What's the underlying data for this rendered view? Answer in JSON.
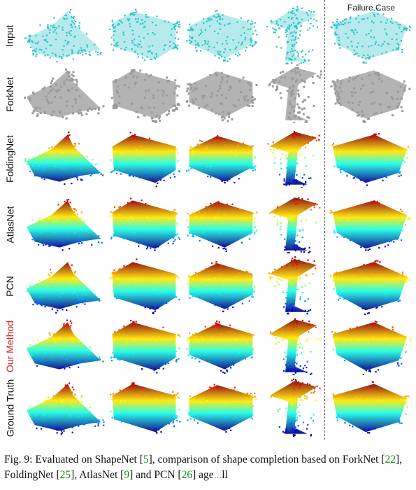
{
  "figure": {
    "column_header_failure": "Failure Case",
    "rows": [
      {
        "key": "input",
        "label": "Input",
        "style": "cyan"
      },
      {
        "key": "forknet",
        "label": "ForkNet",
        "style": "gray"
      },
      {
        "key": "foldingnet",
        "label": "FoldingNet",
        "style": "color"
      },
      {
        "key": "atlasnet",
        "label": "AtlasNet",
        "style": "color"
      },
      {
        "key": "pcn",
        "label": "PCN",
        "style": "color"
      },
      {
        "key": "ours",
        "label": "Our Method",
        "style": "color",
        "highlight": "#d11f1f"
      },
      {
        "key": "gt",
        "label": "Ground Truth",
        "style": "color"
      }
    ],
    "columns": [
      "airplane",
      "truck",
      "car",
      "lamp",
      "table"
    ]
  },
  "caption": {
    "fig_label": "Fig. 9:",
    "text1": " Evaluated on ShapeNet [",
    "ref1": "5",
    "text2": "], comparison of shape completion based on ForkNet [",
    "ref2": "22",
    "text3": "], FoldingNet [",
    "ref3": "25",
    "text4": "], AtlasNet [",
    "ref4": "9",
    "text5": "] and PCN [",
    "ref5": "26",
    "text6": "] age",
    "text7": "...",
    "text8": "ll"
  }
}
